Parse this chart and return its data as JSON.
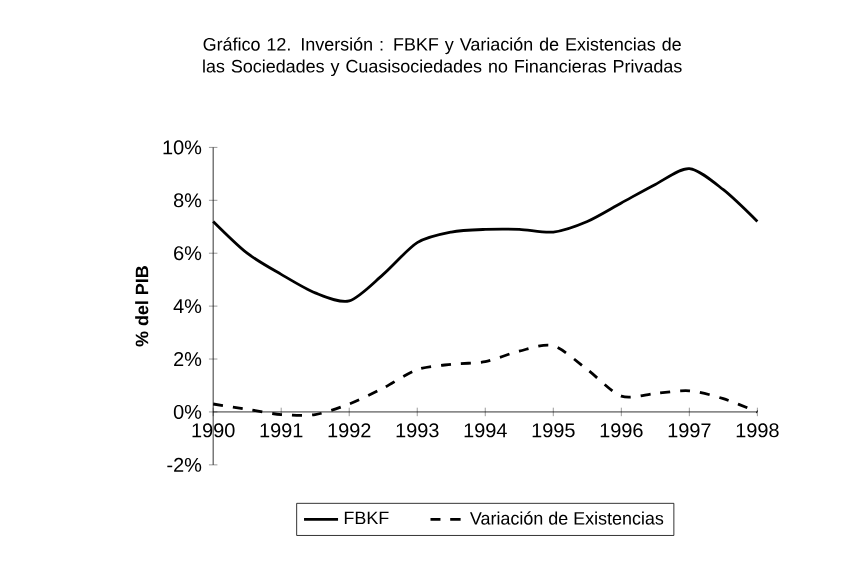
{
  "chart_data": {
    "type": "line",
    "title": "Gráfico 12. Inversión : FBKF y Variación de Existencias de las Sociedades y Cuasisociedades no Financieras Privadas",
    "ylabel": "% del PIB",
    "x": [
      1990,
      1990.5,
      1991,
      1991.5,
      1992,
      1992.5,
      1993,
      1993.5,
      1994,
      1994.5,
      1995,
      1995.5,
      1996,
      1996.5,
      1997,
      1997.5,
      1998
    ],
    "series": [
      {
        "name": "FBKF",
        "color": "#000000",
        "line_style": "solid",
        "values": [
          7.2,
          6.0,
          5.2,
          4.5,
          4.2,
          5.2,
          6.4,
          6.8,
          6.9,
          6.9,
          6.8,
          7.2,
          7.9,
          8.6,
          9.2,
          8.4,
          7.2
        ]
      },
      {
        "name": "Variación de Existencias",
        "color": "#000000",
        "line_style": "dashed",
        "values": [
          0.3,
          0.1,
          -0.1,
          -0.1,
          0.3,
          0.9,
          1.6,
          1.8,
          1.9,
          2.3,
          2.5,
          1.6,
          0.6,
          0.7,
          0.8,
          0.5,
          0.0
        ]
      }
    ],
    "xlim": [
      1990,
      1998
    ],
    "xticks": [
      1990,
      1991,
      1992,
      1993,
      1994,
      1995,
      1996,
      1997,
      1998
    ],
    "ylim": [
      -2,
      10
    ],
    "yticks": [
      {
        "value": -2,
        "label": "-2%"
      },
      {
        "value": 0,
        "label": "0%"
      },
      {
        "value": 2,
        "label": "2%"
      },
      {
        "value": 4,
        "label": "4%"
      },
      {
        "value": 6,
        "label": "6%"
      },
      {
        "value": 8,
        "label": "8%"
      },
      {
        "value": 10,
        "label": "10%"
      }
    ],
    "grid": false,
    "legend": "bottom",
    "marker": "none"
  }
}
